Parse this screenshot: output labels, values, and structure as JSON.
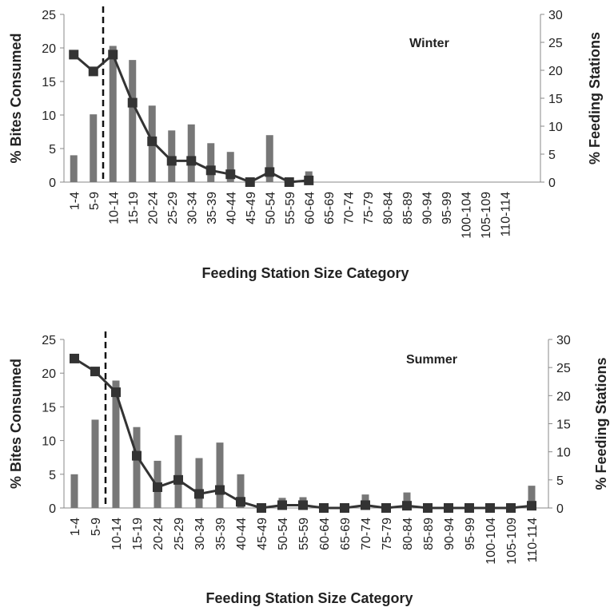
{
  "chart_data": [
    {
      "type": "bar",
      "annotation": "Winter",
      "xlabel": "Feeding Station Size Category",
      "ylabel": "% Bites Consumed",
      "y2label": "% Feeding Stations",
      "ylim": [
        0,
        25
      ],
      "y2lim": [
        0,
        30
      ],
      "yticks": [
        0,
        5,
        10,
        15,
        20,
        25
      ],
      "y2ticks": [
        0,
        5,
        10,
        15,
        20,
        25,
        30
      ],
      "categories": [
        "1-4",
        "5-9",
        "10-14",
        "15-19",
        "20-24",
        "25-29",
        "30-34",
        "35-39",
        "40-44",
        "45-49",
        "50-54",
        "55-59",
        "60-64",
        "65-69",
        "70-74",
        "75-79",
        "80-84",
        "85-89",
        "90-94",
        "95-99",
        "100-104",
        "105-109",
        "110-114"
      ],
      "series": [
        {
          "name": "",
          "kind": "bar",
          "axis": "left",
          "color": "#777777",
          "values": [
            4.0,
            10.1,
            20.3,
            18.2,
            11.4,
            7.7,
            8.6,
            5.8,
            4.5,
            0,
            7.0,
            0,
            1.6,
            null,
            null,
            null,
            null,
            null,
            null,
            null,
            null,
            null,
            null
          ]
        },
        {
          "name": "",
          "kind": "line",
          "axis": "right",
          "color": "#333333",
          "values": [
            22.8,
            19.8,
            22.8,
            14.2,
            7.3,
            3.8,
            3.8,
            2.1,
            1.4,
            0,
            1.8,
            0,
            0.3,
            null,
            null,
            null,
            null,
            null,
            null,
            null,
            null,
            null,
            null
          ]
        }
      ],
      "dashed_line_between": [
        "5-9",
        "10-14"
      ]
    },
    {
      "type": "bar",
      "annotation": "Summer",
      "xlabel": "Feeding Station Size Category",
      "ylabel": "% Bites Consumed",
      "y2label": "% Feeding Stations",
      "ylim": [
        0,
        25
      ],
      "y2lim": [
        0,
        30
      ],
      "yticks": [
        0,
        5,
        10,
        15,
        20,
        25
      ],
      "y2ticks": [
        0,
        5,
        10,
        15,
        20,
        25,
        30
      ],
      "categories": [
        "1-4",
        "5-9",
        "10-14",
        "15-19",
        "20-24",
        "25-29",
        "30-34",
        "35-39",
        "40-44",
        "45-49",
        "50-54",
        "55-59",
        "60-64",
        "65-69",
        "70-74",
        "75-79",
        "80-84",
        "85-89",
        "90-94",
        "95-99",
        "100-104",
        "105-109",
        "110-114"
      ],
      "series": [
        {
          "name": "",
          "kind": "bar",
          "axis": "left",
          "color": "#777777",
          "values": [
            5.0,
            13.1,
            18.9,
            12.0,
            7.0,
            10.8,
            7.4,
            9.7,
            5.0,
            0,
            1.5,
            1.6,
            0,
            0,
            2.0,
            0,
            2.3,
            0,
            0,
            0,
            0,
            0,
            3.3
          ]
        },
        {
          "name": "",
          "kind": "line",
          "axis": "right",
          "color": "#333333",
          "values": [
            26.6,
            24.3,
            20.6,
            9.3,
            3.7,
            5.0,
            2.5,
            3.2,
            1.1,
            0,
            0.5,
            0.5,
            0,
            0,
            0.5,
            0,
            0.4,
            0,
            0,
            0,
            0,
            0,
            0.4
          ]
        }
      ],
      "dashed_line_between": [
        "5-9",
        "10-14"
      ]
    }
  ]
}
